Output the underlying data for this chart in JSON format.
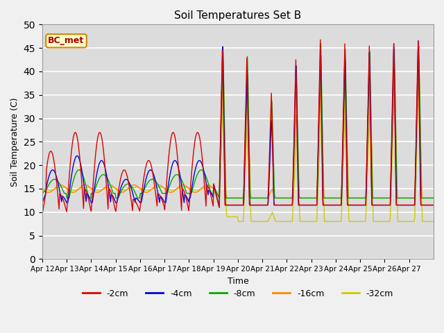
{
  "title": "Soil Temperatures Set B",
  "xlabel": "Time",
  "ylabel": "Soil Temperature (C)",
  "ylim": [
    0,
    50
  ],
  "series_labels": [
    "-2cm",
    "-4cm",
    "-8cm",
    "-16cm",
    "-32cm"
  ],
  "series_colors": [
    "#dd0000",
    "#0000dd",
    "#00aa00",
    "#ff8800",
    "#cccc00"
  ],
  "annotation_text": "BC_met",
  "annotation_color": "#aa0000",
  "annotation_bg": "#ffffcc",
  "bg_color": "#dcdcdc",
  "tick_labels": [
    "Apr 12",
    "Apr 13",
    "Apr 14",
    "Apr 15",
    "Apr 16",
    "Apr 17",
    "Apr 18",
    "Apr 19",
    "Apr 20",
    "Apr 21",
    "Apr 22",
    "Apr 23",
    "Apr 24",
    "Apr 25",
    "Apr 26",
    "Apr 27"
  ],
  "num_points_per_day": 48
}
